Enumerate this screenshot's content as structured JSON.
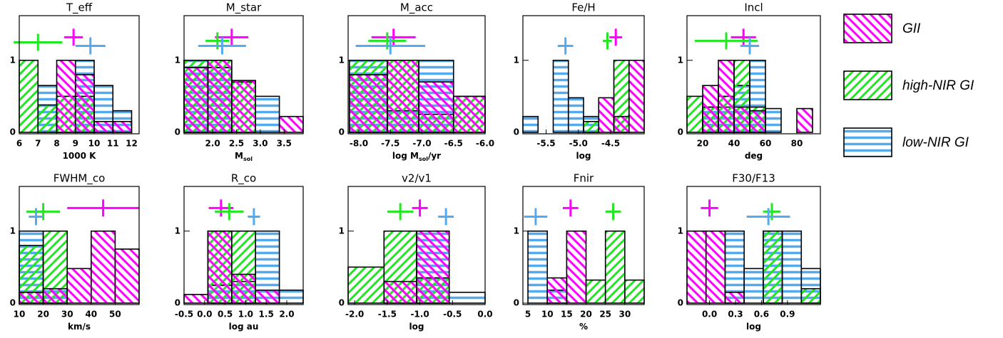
{
  "chart_data": [
    {
      "type": "histogram",
      "title": "T_eff",
      "xlabel": [
        "1000 K"
      ],
      "xlim": [
        6,
        12.4
      ],
      "xticks": [
        6,
        7,
        8,
        9,
        10,
        11,
        12
      ],
      "ylim": [
        -0.02,
        1.62
      ],
      "yticks": [
        0,
        1
      ],
      "series": [
        {
          "name": "GII",
          "color": "#ff00ff",
          "pattern": "backslash",
          "bins": [
            6,
            7,
            8,
            9,
            10,
            11,
            12
          ],
          "values": [
            0,
            0,
            1,
            0.8,
            0.15,
            0.15
          ],
          "mean": 8.9,
          "std": 0.5,
          "level": 1.32
        },
        {
          "name": "high-NIR GI",
          "color": "#22e622",
          "pattern": "slash",
          "bins": [
            6,
            7,
            8,
            9,
            10,
            11,
            12
          ],
          "values": [
            1,
            0.38,
            0.5,
            0.5,
            0,
            0
          ],
          "mean": 7.0,
          "std": 1.3,
          "level": 1.25
        },
        {
          "name": "low-NIR GI",
          "color": "#55aaee",
          "pattern": "horizontal",
          "bins": [
            6,
            7,
            8,
            9,
            10,
            11,
            12
          ],
          "values": [
            0,
            0.65,
            0,
            1,
            0.65,
            0.3
          ],
          "mean": 9.8,
          "std": 0.8,
          "level": 1.2
        }
      ]
    },
    {
      "type": "histogram",
      "title": "M_star",
      "xlabel": [
        "M",
        "sol"
      ],
      "xlim": [
        1.4,
        3.9
      ],
      "xticks": [
        {
          "value": 2,
          "label": "2.0"
        },
        2.5,
        {
          "value": 3,
          "label": "3.0"
        },
        3.5
      ],
      "ylim": [
        -0.02,
        1.62
      ],
      "yticks": [
        0,
        1
      ],
      "series": [
        {
          "name": "GII",
          "color": "#ff00ff",
          "pattern": "backslash",
          "bins": [
            1.4,
            1.9,
            2.4,
            2.9,
            3.4,
            3.9
          ],
          "values": [
            0.9,
            1,
            0.72,
            0,
            0.22
          ],
          "mean": 2.4,
          "std": 0.35,
          "level": 1.32
        },
        {
          "name": "high-NIR GI",
          "color": "#22e622",
          "pattern": "slash",
          "bins": [
            1.4,
            1.9,
            2.4,
            2.9,
            3.4,
            3.9
          ],
          "values": [
            1,
            1,
            0.7,
            0,
            0
          ],
          "mean": 2.1,
          "std": 0.25,
          "level": 1.27
        },
        {
          "name": "low-NIR GI",
          "color": "#55aaee",
          "pattern": "horizontal",
          "bins": [
            1.4,
            1.9,
            2.4,
            2.9,
            3.4,
            3.9
          ],
          "values": [
            1,
            0.9,
            0,
            0.5,
            0
          ],
          "mean": 2.2,
          "std": 0.5,
          "level": 1.2
        }
      ]
    },
    {
      "type": "histogram",
      "title": "M_acc",
      "xlabel": [
        "log M",
        "sol",
        "/yr"
      ],
      "xlim": [
        -8.17,
        -6.0
      ],
      "xticks": [
        {
          "value": -8,
          "label": "-8.0"
        },
        -7.5,
        {
          "value": -7,
          "label": "-7.0"
        },
        -6.5,
        {
          "value": -6,
          "label": "-6.0"
        }
      ],
      "ylim": [
        -0.02,
        1.62
      ],
      "yticks": [
        0,
        1
      ],
      "series": [
        {
          "name": "GII",
          "color": "#ff00ff",
          "pattern": "backslash",
          "bins": [
            -8.15,
            -7.55,
            -7.05,
            -6.5,
            -6.0
          ],
          "values": [
            0.8,
            1,
            0.7,
            0.5
          ],
          "mean": -7.45,
          "std": 0.35,
          "level": 1.32
        },
        {
          "name": "high-NIR GI",
          "color": "#22e622",
          "pattern": "slash",
          "bins": [
            -8.15,
            -7.55,
            -7.05,
            -6.5,
            -6.0
          ],
          "values": [
            1,
            1,
            0.25,
            0.5
          ],
          "mean": -7.55,
          "std": 0.3,
          "level": 1.27
        },
        {
          "name": "low-NIR GI",
          "color": "#55aaee",
          "pattern": "horizontal",
          "bins": [
            -8.15,
            -7.55,
            -7.05,
            -6.5,
            -6.0
          ],
          "values": [
            1,
            0.3,
            1,
            0
          ],
          "mean": -7.5,
          "std": 0.55,
          "level": 1.2
        }
      ]
    },
    {
      "type": "histogram",
      "title": "Fe/H",
      "xlabel": [
        "log"
      ],
      "xlim": [
        -5.86,
        -3.98
      ],
      "xticks": [
        -5.5,
        {
          "value": -5,
          "label": "-5.0"
        },
        -4.5
      ],
      "ylim": [
        -0.02,
        1.62
      ],
      "yticks": [
        0,
        1
      ],
      "series": [
        {
          "name": "GII",
          "color": "#ff00ff",
          "pattern": "backslash",
          "bins": [
            -5.86,
            -5.625,
            -5.39,
            -5.155,
            -4.92,
            -4.685,
            -4.45,
            -4.215,
            -3.98
          ],
          "values": [
            0,
            0,
            0,
            0,
            0,
            0.48,
            0.22,
            1
          ],
          "mean": -4.42,
          "std": 0.1,
          "level": 1.32
        },
        {
          "name": "high-NIR GI",
          "color": "#22e622",
          "pattern": "slash",
          "bins": [
            -5.86,
            -5.625,
            -5.39,
            -5.155,
            -4.92,
            -4.685,
            -4.45,
            -4.215,
            -3.98
          ],
          "values": [
            0,
            0,
            0,
            0,
            0.15,
            0,
            1,
            0
          ],
          "mean": -4.55,
          "std": 0.07,
          "level": 1.27
        },
        {
          "name": "low-NIR GI",
          "color": "#55aaee",
          "pattern": "horizontal",
          "bins": [
            -5.86,
            -5.625,
            -5.39,
            -5.155,
            -4.92,
            -4.685,
            -4.45,
            -4.215,
            -3.98
          ],
          "values": [
            0.22,
            0,
            1,
            0.48,
            0.22,
            0,
            0,
            0
          ],
          "mean": -5.2,
          "std": 0.12,
          "level": 1.2
        }
      ]
    },
    {
      "type": "histogram",
      "title": "Incl",
      "xlabel": [
        "deg"
      ],
      "xlim": [
        10,
        95
      ],
      "xticks": [
        20,
        40,
        60,
        80
      ],
      "ylim": [
        -0.02,
        1.62
      ],
      "yticks": [
        0,
        1
      ],
      "series": [
        {
          "name": "GII",
          "color": "#ff00ff",
          "pattern": "backslash",
          "bins": [
            10,
            20,
            30,
            40,
            50,
            60,
            70,
            80,
            90
          ],
          "values": [
            0,
            0.65,
            1,
            0.35,
            0.3,
            0,
            0,
            0.33
          ],
          "mean": 46,
          "std": 8,
          "level": 1.32
        },
        {
          "name": "high-NIR GI",
          "color": "#22e622",
          "pattern": "slash",
          "bins": [
            10,
            20,
            30,
            40,
            50,
            60,
            70,
            80,
            90
          ],
          "values": [
            0.5,
            0.35,
            0.5,
            1,
            0.35,
            0,
            0,
            0
          ],
          "mean": 35,
          "std": 20,
          "level": 1.27
        },
        {
          "name": "low-NIR GI",
          "color": "#55aaee",
          "pattern": "horizontal",
          "bins": [
            10,
            20,
            30,
            40,
            50,
            60,
            70,
            80,
            90
          ],
          "values": [
            0,
            0.35,
            0.35,
            0.65,
            1,
            0.33,
            0,
            0
          ],
          "mean": 50,
          "std": 6,
          "level": 1.2
        }
      ]
    },
    {
      "type": "histogram",
      "title": "FWHM_co",
      "xlabel": [
        "km/s"
      ],
      "xlim": [
        10,
        60
      ],
      "xticks": [
        10,
        20,
        30,
        40,
        50
      ],
      "ylim": [
        -0.02,
        1.62
      ],
      "yticks": [
        0,
        1
      ],
      "series": [
        {
          "name": "GII",
          "color": "#ff00ff",
          "pattern": "backslash",
          "bins": [
            10,
            20,
            30,
            40,
            50,
            60
          ],
          "values": [
            0.15,
            0.2,
            0.48,
            1,
            0.75
          ],
          "mean": 45,
          "std": 15,
          "level": 1.32
        },
        {
          "name": "high-NIR GI",
          "color": "#22e622",
          "pattern": "slash",
          "bins": [
            10,
            20,
            30,
            40,
            50,
            60
          ],
          "values": [
            0.8,
            1,
            0,
            0,
            0
          ],
          "mean": 20,
          "std": 7,
          "level": 1.27
        },
        {
          "name": "low-NIR GI",
          "color": "#55aaee",
          "pattern": "horizontal",
          "bins": [
            10,
            20,
            30,
            40,
            50,
            60
          ],
          "values": [
            1,
            0.2,
            0,
            0,
            0
          ],
          "mean": 17,
          "std": 3,
          "level": 1.2
        }
      ]
    },
    {
      "type": "histogram",
      "title": "R_co",
      "xlabel": [
        "log au"
      ],
      "xlim": [
        -0.5,
        2.4
      ],
      "xticks": [
        -0.5,
        {
          "value": 0,
          "label": "0.0"
        },
        0.5,
        {
          "value": 1,
          "label": "1.0"
        },
        1.5,
        {
          "value": 2,
          "label": "2.0"
        }
      ],
      "ylim": [
        -0.02,
        1.62
      ],
      "yticks": [
        0,
        1
      ],
      "series": [
        {
          "name": "GII",
          "color": "#ff00ff",
          "pattern": "backslash",
          "bins": [
            -0.5,
            0.08,
            0.66,
            1.24,
            1.82,
            2.4
          ],
          "values": [
            0.12,
            1,
            0.4,
            0.18,
            0
          ],
          "mean": 0.4,
          "std": 0.3,
          "level": 1.32
        },
        {
          "name": "high-NIR GI",
          "color": "#22e622",
          "pattern": "slash",
          "bins": [
            -0.5,
            0.08,
            0.66,
            1.24,
            1.82,
            2.4
          ],
          "values": [
            0,
            1,
            1,
            0,
            0
          ],
          "mean": 0.6,
          "std": 0.35,
          "level": 1.27
        },
        {
          "name": "low-NIR GI",
          "color": "#55aaee",
          "pattern": "horizontal",
          "bins": [
            -0.5,
            0.08,
            0.66,
            1.24,
            1.82,
            2.4
          ],
          "values": [
            0,
            0.25,
            0.3,
            1,
            0.18
          ],
          "mean": 1.2,
          "std": 0.15,
          "level": 1.2
        }
      ]
    },
    {
      "type": "histogram",
      "title": "v2/v1",
      "xlabel": [
        "log"
      ],
      "xlim": [
        -2.1,
        0
      ],
      "xticks": [
        {
          "value": -2,
          "label": "-2.0"
        },
        -1.5,
        {
          "value": -1,
          "label": "-1.0"
        },
        -0.5,
        {
          "value": 0,
          "label": "0.0"
        }
      ],
      "ylim": [
        -0.02,
        1.62
      ],
      "yticks": [
        0,
        1
      ],
      "series": [
        {
          "name": "GII",
          "color": "#ff00ff",
          "pattern": "backslash",
          "bins": [
            -2.1,
            -1.55,
            -1.05,
            -0.55,
            0
          ],
          "values": [
            0,
            0.3,
            1,
            0
          ],
          "mean": -1.0,
          "std": 0.12,
          "level": 1.32
        },
        {
          "name": "high-NIR GI",
          "color": "#22e622",
          "pattern": "slash",
          "bins": [
            -2.1,
            -1.55,
            -1.05,
            -0.55,
            0
          ],
          "values": [
            0.5,
            1,
            0.35,
            0
          ],
          "mean": -1.3,
          "std": 0.2,
          "level": 1.27
        },
        {
          "name": "low-NIR GI",
          "color": "#55aaee",
          "pattern": "horizontal",
          "bins": [
            -2.1,
            -1.55,
            -1.05,
            -0.55,
            0
          ],
          "values": [
            0,
            0,
            1,
            0.15
          ],
          "mean": -0.6,
          "std": 0.12,
          "level": 1.2
        }
      ]
    },
    {
      "type": "histogram",
      "title": "Fnir",
      "xlabel": [
        "%"
      ],
      "xlim": [
        3.7,
        35
      ],
      "xticks": [
        5,
        10,
        15,
        20,
        25,
        30
      ],
      "ylim": [
        -0.02,
        1.62
      ],
      "yticks": [
        0,
        1
      ],
      "series": [
        {
          "name": "GII",
          "color": "#ff00ff",
          "pattern": "backslash",
          "bins": [
            5,
            10,
            15,
            20,
            25,
            30,
            35
          ],
          "values": [
            0,
            0.35,
            1,
            0,
            0,
            0
          ],
          "mean": 16,
          "std": 2,
          "level": 1.32
        },
        {
          "name": "high-NIR GI",
          "color": "#22e622",
          "pattern": "slash",
          "bins": [
            5,
            10,
            15,
            20,
            25,
            30,
            35
          ],
          "values": [
            0,
            0,
            0,
            0.32,
            1,
            0.32
          ],
          "mean": 27,
          "std": 2,
          "level": 1.27
        },
        {
          "name": "low-NIR GI",
          "color": "#55aaee",
          "pattern": "horizontal",
          "bins": [
            5,
            10,
            15,
            20,
            25,
            30,
            35
          ],
          "values": [
            1,
            0.18,
            0,
            0,
            0,
            0
          ],
          "mean": 7,
          "std": 3,
          "level": 1.2
        }
      ]
    },
    {
      "type": "histogram",
      "title": "F30/F13",
      "xlabel": [
        "log"
      ],
      "xlim": [
        -0.26,
        1.28
      ],
      "xticks": [
        {
          "value": 0,
          "label": "0.0"
        },
        0.3,
        0.6,
        0.9
      ],
      "ylim": [
        -0.02,
        1.62
      ],
      "yticks": [
        0,
        1
      ],
      "series": [
        {
          "name": "GII",
          "color": "#ff00ff",
          "pattern": "backslash",
          "bins": [
            -0.26,
            -0.04,
            0.18,
            0.4,
            0.62,
            0.84,
            1.06,
            1.28
          ],
          "values": [
            1,
            1,
            0.15,
            0,
            0,
            0,
            0
          ],
          "mean": 0.0,
          "std": 0.1,
          "level": 1.32
        },
        {
          "name": "high-NIR GI",
          "color": "#22e622",
          "pattern": "slash",
          "bins": [
            -0.26,
            -0.04,
            0.18,
            0.4,
            0.62,
            0.84,
            1.06,
            1.28
          ],
          "values": [
            0,
            0,
            0,
            0,
            1,
            0,
            0.2
          ],
          "mean": 0.72,
          "std": 0.1,
          "level": 1.27
        },
        {
          "name": "low-NIR GI",
          "color": "#55aaee",
          "pattern": "horizontal",
          "bins": [
            -0.26,
            -0.04,
            0.18,
            0.4,
            0.62,
            0.84,
            1.06,
            1.28
          ],
          "values": [
            0,
            0,
            1,
            0.48,
            1,
            1,
            0.48
          ],
          "mean": 0.68,
          "std": 0.25,
          "level": 1.2
        }
      ]
    }
  ]
}
